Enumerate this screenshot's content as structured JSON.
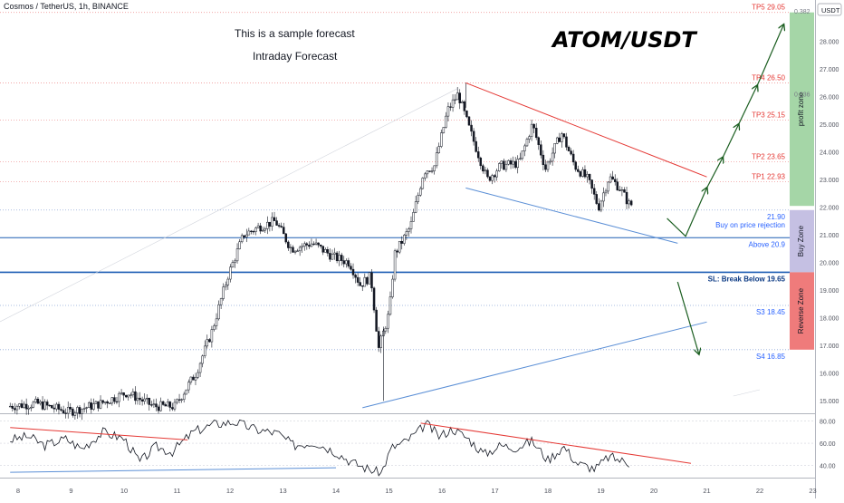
{
  "header": {
    "symbol": "Cosmos / TetherUS, 1h, BINANCE",
    "currency": "USDT"
  },
  "annotations": {
    "note_1": "This is a sample forecast",
    "note_2": "Intraday Forecast",
    "pair": "ATOM/USDT"
  },
  "colors": {
    "bull": "#131722",
    "bear": "#131722",
    "tp_line": "#ef9a9a",
    "tp_text": "#e53935",
    "support_line": "#1e5fb4",
    "arrow": "#1b5e20",
    "resistance_trend": "#e53935",
    "support_trend": "#5b8fd6",
    "profit_zone": "#a5d6a7",
    "buy_zone": "#c5c0e3",
    "reverse_zone": "#ef7b7b"
  },
  "chart_data": {
    "type": "candlestick",
    "title": "Cosmos / TetherUS, 1h, BINANCE",
    "x_ticks": [
      "8",
      "9",
      "10",
      "11",
      "12",
      "13",
      "14",
      "15",
      "16",
      "17",
      "18",
      "19",
      "20",
      "21",
      "22",
      "23"
    ],
    "y_ticks": [
      "15.000",
      "16.000",
      "17.000",
      "18.000",
      "19.000",
      "20.000",
      "21.000",
      "22.000",
      "23.000",
      "24.000",
      "25.000",
      "26.000",
      "27.000",
      "28.000"
    ],
    "ylim": [
      14.6,
      29.4
    ],
    "price_path": [
      {
        "day": 7.85,
        "price": 14.8
      },
      {
        "day": 8.4,
        "price": 14.9
      },
      {
        "day": 9.0,
        "price": 14.6
      },
      {
        "day": 9.6,
        "price": 14.9
      },
      {
        "day": 10.1,
        "price": 15.3
      },
      {
        "day": 10.6,
        "price": 14.8
      },
      {
        "day": 11.0,
        "price": 14.8
      },
      {
        "day": 11.4,
        "price": 16.0
      },
      {
        "day": 11.7,
        "price": 17.5
      },
      {
        "day": 12.0,
        "price": 19.5
      },
      {
        "day": 12.3,
        "price": 21.0
      },
      {
        "day": 12.6,
        "price": 21.3
      },
      {
        "day": 12.9,
        "price": 21.5
      },
      {
        "day": 13.2,
        "price": 20.5
      },
      {
        "day": 13.6,
        "price": 20.7
      },
      {
        "day": 14.0,
        "price": 20.2
      },
      {
        "day": 14.3,
        "price": 20.0
      },
      {
        "day": 14.5,
        "price": 19.2
      },
      {
        "day": 14.7,
        "price": 19.5
      },
      {
        "day": 14.85,
        "price": 16.9
      },
      {
        "day": 15.05,
        "price": 18.2
      },
      {
        "day": 15.15,
        "price": 20.3
      },
      {
        "day": 15.45,
        "price": 21.3
      },
      {
        "day": 15.7,
        "price": 23.3
      },
      {
        "day": 15.9,
        "price": 23.5
      },
      {
        "day": 16.15,
        "price": 25.5
      },
      {
        "day": 16.35,
        "price": 26.1
      },
      {
        "day": 16.55,
        "price": 24.9
      },
      {
        "day": 16.9,
        "price": 23.0
      },
      {
        "day": 17.15,
        "price": 23.5
      },
      {
        "day": 17.5,
        "price": 23.6
      },
      {
        "day": 17.75,
        "price": 25.0
      },
      {
        "day": 18.0,
        "price": 23.4
      },
      {
        "day": 18.3,
        "price": 24.7
      },
      {
        "day": 18.55,
        "price": 23.5
      },
      {
        "day": 18.8,
        "price": 23.0
      },
      {
        "day": 19.0,
        "price": 22.0
      },
      {
        "day": 19.2,
        "price": 23.1
      },
      {
        "day": 19.4,
        "price": 22.7
      },
      {
        "day": 19.58,
        "price": 22.1
      }
    ],
    "levels": [
      {
        "label": "TP5 29.05",
        "price": 29.05,
        "kind": "target"
      },
      {
        "label": "TP4 26.50",
        "price": 26.5,
        "kind": "target"
      },
      {
        "label": "TP3 25.15",
        "price": 25.15,
        "kind": "target"
      },
      {
        "label": "TP2 23.65",
        "price": 23.65,
        "kind": "target"
      },
      {
        "label": "TP1 22.93",
        "price": 22.93,
        "kind": "target"
      },
      {
        "label": "21.90",
        "price": 21.9,
        "kind": "entry"
      },
      {
        "label": "Buy on price rejection",
        "price": 21.2,
        "kind": "note"
      },
      {
        "label": "Above 20.9",
        "price": 20.9,
        "kind": "entry"
      },
      {
        "label": "SL: Break Below 19.65",
        "price": 19.65,
        "kind": "stop"
      },
      {
        "label": "S3 18.45",
        "price": 18.45,
        "kind": "support"
      },
      {
        "label": "S4 16.85",
        "price": 16.85,
        "kind": "support"
      }
    ],
    "fib_labels": [
      {
        "label": "0.382",
        "price": 29.1
      },
      {
        "label": "0.236",
        "price": 26.1
      }
    ],
    "zones": [
      {
        "label": "profit zone",
        "from": 22.05,
        "to": 29.05
      },
      {
        "label": "Buy Zone",
        "from": 19.65,
        "to": 21.9
      },
      {
        "label": "Reverse Zone",
        "from": 16.85,
        "to": 19.65
      }
    ],
    "trendlines": [
      {
        "name": "resistance",
        "from": {
          "day": 16.45,
          "price": 26.5
        },
        "to": {
          "day": 21.0,
          "price": 23.1
        }
      },
      {
        "name": "lower-channel",
        "from": {
          "day": 16.45,
          "price": 22.7
        },
        "to": {
          "day": 20.45,
          "price": 20.7
        }
      },
      {
        "name": "rising-support",
        "from": {
          "day": 14.5,
          "price": 14.75
        },
        "to": {
          "day": 21.0,
          "price": 17.85
        }
      }
    ],
    "forecast_arrows": [
      [
        {
          "day": 20.25,
          "price": 21.6
        },
        {
          "day": 20.6,
          "price": 20.95
        },
        {
          "day": 21.0,
          "price": 22.7
        }
      ],
      [
        {
          "day": 21.0,
          "price": 22.7
        },
        {
          "day": 21.3,
          "price": 23.8
        }
      ],
      [
        {
          "day": 21.3,
          "price": 23.8
        },
        {
          "day": 21.6,
          "price": 25.0
        }
      ],
      [
        {
          "day": 21.6,
          "price": 25.0
        },
        {
          "day": 21.95,
          "price": 26.4
        }
      ],
      [
        {
          "day": 21.95,
          "price": 26.4
        },
        {
          "day": 22.45,
          "price": 28.6
        }
      ],
      [
        {
          "day": 20.45,
          "price": 19.3
        },
        {
          "day": 20.85,
          "price": 16.7
        }
      ]
    ],
    "rsi": {
      "y_ticks": [
        "40.00",
        "60.00",
        "80.00"
      ],
      "ylim": [
        30,
        86
      ],
      "path": [
        {
          "day": 7.85,
          "value": 63
        },
        {
          "day": 8.2,
          "value": 66
        },
        {
          "day": 8.5,
          "value": 58
        },
        {
          "day": 8.9,
          "value": 64
        },
        {
          "day": 9.2,
          "value": 55
        },
        {
          "day": 9.6,
          "value": 70
        },
        {
          "day": 10.0,
          "value": 64
        },
        {
          "day": 10.3,
          "value": 43
        },
        {
          "day": 10.6,
          "value": 57
        },
        {
          "day": 10.9,
          "value": 52
        },
        {
          "day": 11.3,
          "value": 70
        },
        {
          "day": 11.7,
          "value": 77
        },
        {
          "day": 12.1,
          "value": 79
        },
        {
          "day": 12.5,
          "value": 72
        },
        {
          "day": 12.9,
          "value": 69
        },
        {
          "day": 13.2,
          "value": 58
        },
        {
          "day": 13.6,
          "value": 61
        },
        {
          "day": 14.0,
          "value": 52
        },
        {
          "day": 14.3,
          "value": 43
        },
        {
          "day": 14.55,
          "value": 38
        },
        {
          "day": 14.85,
          "value": 33
        },
        {
          "day": 15.05,
          "value": 56
        },
        {
          "day": 15.3,
          "value": 61
        },
        {
          "day": 15.55,
          "value": 70
        },
        {
          "day": 15.7,
          "value": 78
        },
        {
          "day": 15.95,
          "value": 66
        },
        {
          "day": 16.2,
          "value": 73
        },
        {
          "day": 16.5,
          "value": 64
        },
        {
          "day": 16.8,
          "value": 50
        },
        {
          "day": 17.1,
          "value": 58
        },
        {
          "day": 17.4,
          "value": 56
        },
        {
          "day": 17.7,
          "value": 62
        },
        {
          "day": 18.0,
          "value": 45
        },
        {
          "day": 18.3,
          "value": 57
        },
        {
          "day": 18.55,
          "value": 42
        },
        {
          "day": 18.9,
          "value": 37
        },
        {
          "day": 19.15,
          "value": 48
        },
        {
          "day": 19.35,
          "value": 45
        },
        {
          "day": 19.55,
          "value": 42
        }
      ],
      "trendlines": [
        {
          "name": "rsi-resistance-left",
          "from": {
            "day": 7.85,
            "value": 74
          },
          "to": {
            "day": 11.2,
            "value": 63
          }
        },
        {
          "name": "rsi-support-left",
          "from": {
            "day": 7.85,
            "value": 34
          },
          "to": {
            "day": 14.0,
            "value": 38
          }
        },
        {
          "name": "rsi-resistance-right",
          "from": {
            "day": 15.6,
            "value": 78
          },
          "to": {
            "day": 20.7,
            "value": 42
          }
        }
      ]
    }
  }
}
